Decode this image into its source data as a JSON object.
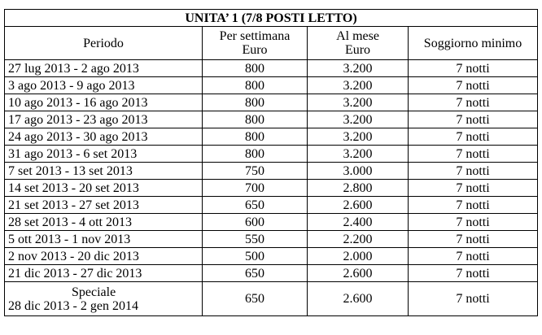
{
  "title": "UNITA’ 1 (7/8 POSTI LETTO)",
  "headers": {
    "period": "Periodo",
    "weekly_line1": "Per settimana",
    "weekly_line2": "Euro",
    "monthly_line1": "Al mese",
    "monthly_line2": "Euro",
    "min_stay": "Soggiorno minimo"
  },
  "rows": [
    {
      "period": "27 lug 2013 - 2 ago 2013",
      "weekly": "800",
      "monthly": "3.200",
      "min_stay": "7 notti"
    },
    {
      "period": "3 ago 2013 - 9 ago 2013",
      "weekly": "800",
      "monthly": "3.200",
      "min_stay": "7 notti"
    },
    {
      "period": "10 ago 2013 - 16 ago 2013",
      "weekly": "800",
      "monthly": "3.200",
      "min_stay": "7 notti"
    },
    {
      "period": "17 ago 2013 - 23 ago 2013",
      "weekly": "800",
      "monthly": "3.200",
      "min_stay": "7 notti"
    },
    {
      "period": "24 ago 2013 - 30 ago 2013",
      "weekly": "800",
      "monthly": "3.200",
      "min_stay": "7 notti"
    },
    {
      "period": "31 ago 2013 - 6 set 2013",
      "weekly": "800",
      "monthly": "3.200",
      "min_stay": "7 notti"
    },
    {
      "period": "7 set 2013 - 13 set 2013",
      "weekly": "750",
      "monthly": "3.000",
      "min_stay": "7 notti"
    },
    {
      "period": "14 set 2013 - 20 set 2013",
      "weekly": "700",
      "monthly": "2.800",
      "min_stay": "7 notti"
    },
    {
      "period": "21 set 2013 - 27 set 2013",
      "weekly": "650",
      "monthly": "2.600",
      "min_stay": "7 notti"
    },
    {
      "period": "28 set 2013 - 4 ott 2013",
      "weekly": "600",
      "monthly": "2.400",
      "min_stay": "7 notti"
    },
    {
      "period": "5 ott 2013 - 1 nov 2013",
      "weekly": "550",
      "monthly": "2.200",
      "min_stay": "7 notti"
    },
    {
      "period": "2 nov 2013 - 20 dic 2013",
      "weekly": "500",
      "monthly": "2.000",
      "min_stay": "7 notti"
    },
    {
      "period": "21 dic 2013 - 27 dic 2013",
      "weekly": "650",
      "monthly": "2.600",
      "min_stay": "7 notti"
    }
  ],
  "special_row": {
    "label": "Speciale",
    "period": "28 dic 2013 - 2 gen 2014",
    "weekly": "650",
    "monthly": "2.600",
    "min_stay": "7 notti"
  }
}
